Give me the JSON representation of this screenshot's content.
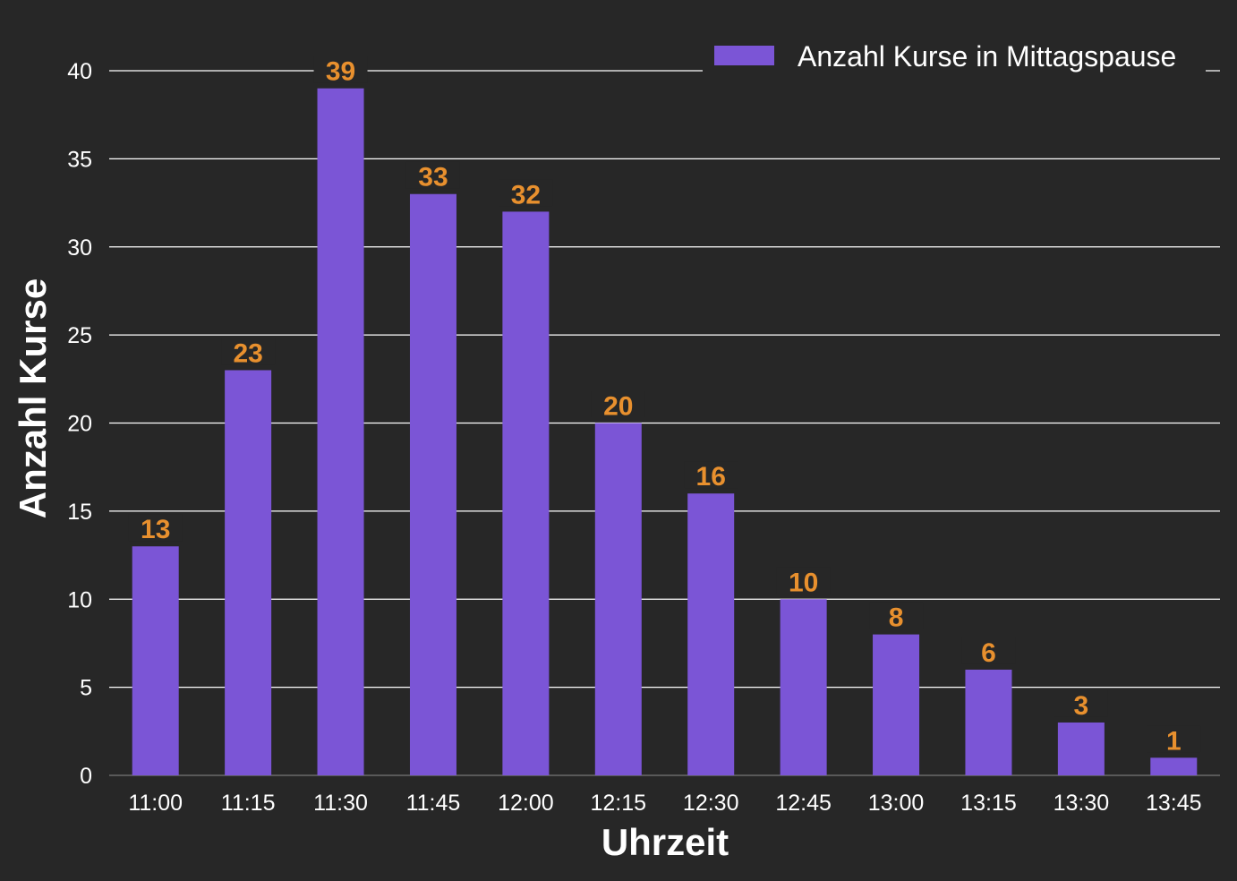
{
  "chart_data": {
    "type": "bar",
    "categories": [
      "11:00",
      "11:15",
      "11:30",
      "11:45",
      "12:00",
      "12:15",
      "12:30",
      "12:45",
      "13:00",
      "13:15",
      "13:30",
      "13:45"
    ],
    "series": [
      {
        "name": "Anzahl Kurse in Mittagspause",
        "values": [
          13,
          23,
          39,
          33,
          32,
          20,
          16,
          10,
          8,
          6,
          3,
          1
        ]
      }
    ],
    "xlabel": "Uhrzeit",
    "ylabel": "Anzahl Kurse",
    "ylim": [
      0,
      40
    ],
    "yticks": [
      0,
      5,
      10,
      15,
      20,
      25,
      30,
      35,
      40
    ],
    "grid": true,
    "legend_position": "top-right",
    "data_labels": true,
    "colors": {
      "background": "#272727",
      "bar": "#7b55d6",
      "data_label": "#e8902e",
      "text": "#ffffff",
      "grid": "#ffffff"
    }
  }
}
